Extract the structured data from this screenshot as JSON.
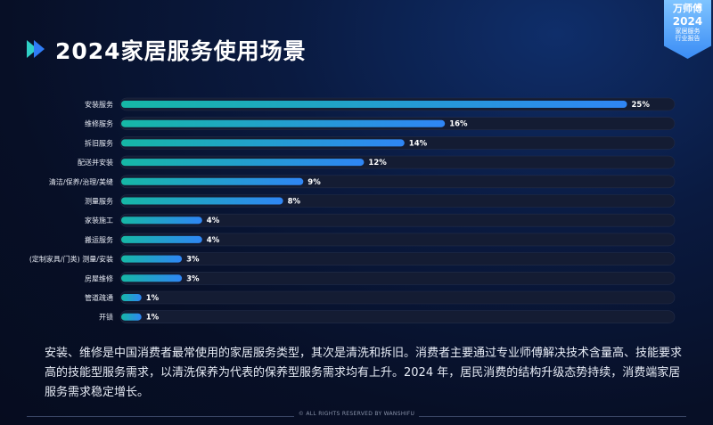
{
  "header": {
    "title": "2024家居服务使用场景"
  },
  "badge": {
    "brand": "万师傅",
    "year": "2024",
    "line1": "家居服务",
    "line2": "行业报告"
  },
  "chart_data": {
    "type": "bar",
    "orientation": "horizontal",
    "categories": [
      "安装服务",
      "维修服务",
      "拆旧服务",
      "配送并安装",
      "清洁/保养/治理/美缝",
      "测量服务",
      "家装施工",
      "搬运服务",
      "(定制家具/门类) 测量/安装",
      "房屋维修",
      "管道疏通",
      "开锁"
    ],
    "values": [
      25,
      16,
      14,
      12,
      9,
      8,
      4,
      4,
      3,
      3,
      1,
      1
    ],
    "value_labels": [
      "25%",
      "16%",
      "14%",
      "12%",
      "9%",
      "8%",
      "4%",
      "4%",
      "3%",
      "3%",
      "1%",
      "1%"
    ],
    "xlim": [
      0,
      27.4
    ],
    "grid": false,
    "colors": {
      "start": "#16b8a6",
      "end": "#2f86f5",
      "track": "#141c33"
    }
  },
  "description": "安装、维修是中国消费者最常使用的家居服务类型，其次是清洗和拆旧。消费者主要通过专业师傅解决技术含量高、技能要求高的技能型服务需求，以清洗保养为代表的保养型服务需求均有上升。2024 年，居民消费的结构升级态势持续，消费端家居服务需求稳定增长。",
  "footer": "© ALL RIGHTS RESERVED BY WANSHIFU"
}
